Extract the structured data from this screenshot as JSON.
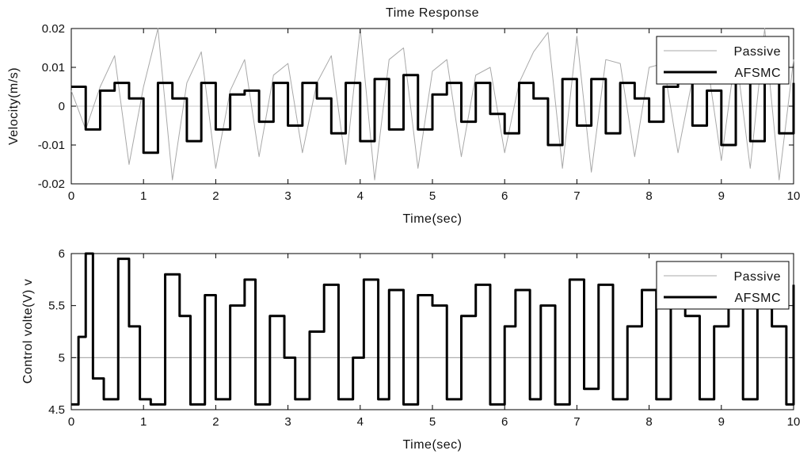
{
  "chart_data": [
    {
      "type": "line",
      "title": "Time Response",
      "xlabel": "Time(sec)",
      "ylabel": "Velocity(m/s)",
      "xlim": [
        0,
        10
      ],
      "ylim": [
        -0.02,
        0.02
      ],
      "xticks": [
        "0",
        "1",
        "2",
        "3",
        "4",
        "5",
        "6",
        "7",
        "8",
        "9",
        "10"
      ],
      "yticks": [
        "-0.02",
        "-0.01",
        "0",
        "0.01",
        "0.02"
      ],
      "legend": {
        "position": "top-right",
        "entries": [
          "Passive",
          "AFSMC"
        ]
      },
      "colors": {
        "Passive": "#a8a8a8",
        "AFSMC": "#000000"
      },
      "series": [
        {
          "name": "Passive",
          "x": [
            0,
            0.2,
            0.4,
            0.6,
            0.8,
            1.0,
            1.2,
            1.4,
            1.6,
            1.8,
            2.0,
            2.2,
            2.4,
            2.6,
            2.8,
            3.0,
            3.2,
            3.4,
            3.6,
            3.8,
            4.0,
            4.2,
            4.4,
            4.6,
            4.8,
            5.0,
            5.2,
            5.4,
            5.6,
            5.8,
            6.0,
            6.2,
            6.4,
            6.6,
            6.8,
            7.0,
            7.2,
            7.4,
            7.6,
            7.8,
            8.0,
            8.2,
            8.4,
            8.6,
            8.8,
            9.0,
            9.2,
            9.4,
            9.6,
            9.8,
            10.0
          ],
          "y": [
            0.004,
            -0.006,
            0.005,
            0.013,
            -0.015,
            0.005,
            0.02,
            -0.019,
            0.006,
            0.014,
            -0.016,
            0.004,
            0.012,
            -0.013,
            0.008,
            0.011,
            -0.012,
            0.006,
            0.013,
            -0.015,
            0.02,
            -0.019,
            0.012,
            0.015,
            -0.016,
            0.009,
            0.012,
            -0.013,
            0.008,
            0.01,
            -0.012,
            0.006,
            0.014,
            0.019,
            -0.016,
            0.018,
            -0.017,
            0.012,
            0.011,
            -0.013,
            0.01,
            0.011,
            -0.012,
            0.007,
            0.012,
            -0.014,
            0.014,
            -0.016,
            0.02,
            -0.019,
            0.012
          ]
        },
        {
          "name": "AFSMC",
          "x": [
            0,
            0.2,
            0.4,
            0.6,
            0.8,
            1.0,
            1.2,
            1.4,
            1.6,
            1.8,
            2.0,
            2.2,
            2.4,
            2.6,
            2.8,
            3.0,
            3.2,
            3.4,
            3.6,
            3.8,
            4.0,
            4.2,
            4.4,
            4.6,
            4.8,
            5.0,
            5.2,
            5.4,
            5.6,
            5.8,
            6.0,
            6.2,
            6.4,
            6.6,
            6.8,
            7.0,
            7.2,
            7.4,
            7.6,
            7.8,
            8.0,
            8.2,
            8.4,
            8.6,
            8.8,
            9.0,
            9.2,
            9.4,
            9.6,
            9.8,
            10.0
          ],
          "y": [
            0.005,
            -0.006,
            0.004,
            0.006,
            0.002,
            -0.012,
            0.006,
            0.002,
            -0.009,
            0.006,
            -0.006,
            0.003,
            0.004,
            -0.004,
            0.006,
            -0.005,
            0.006,
            0.002,
            -0.007,
            0.006,
            -0.009,
            0.007,
            -0.006,
            0.008,
            -0.006,
            0.003,
            0.006,
            -0.004,
            0.006,
            -0.002,
            -0.007,
            0.006,
            0.002,
            -0.01,
            0.007,
            -0.005,
            0.007,
            -0.007,
            0.006,
            0.002,
            -0.004,
            0.005,
            0.006,
            -0.005,
            0.004,
            -0.01,
            0.006,
            -0.009,
            0.006,
            -0.007,
            0.006
          ]
        }
      ]
    },
    {
      "type": "line",
      "title": "",
      "xlabel": "Time(sec)",
      "ylabel": "Control volte(V) v",
      "xlim": [
        0,
        10
      ],
      "ylim": [
        4.5,
        6
      ],
      "xticks": [
        "0",
        "1",
        "2",
        "3",
        "4",
        "5",
        "6",
        "7",
        "8",
        "9",
        "10"
      ],
      "yticks": [
        "4.5",
        "5",
        "5.5",
        "6"
      ],
      "legend": {
        "position": "top-right",
        "entries": [
          "Passive",
          "AFSMC"
        ]
      },
      "colors": {
        "Passive": "#a8a8a8",
        "AFSMC": "#000000"
      },
      "series": [
        {
          "name": "Passive",
          "x": [
            0,
            10
          ],
          "y": [
            5.0,
            5.0
          ]
        },
        {
          "name": "AFSMC",
          "x": [
            0,
            0.1,
            0.2,
            0.3,
            0.45,
            0.65,
            0.8,
            0.95,
            1.1,
            1.3,
            1.5,
            1.65,
            1.85,
            2.0,
            2.2,
            2.4,
            2.55,
            2.75,
            2.95,
            3.1,
            3.3,
            3.5,
            3.7,
            3.9,
            4.05,
            4.25,
            4.4,
            4.6,
            4.8,
            5.0,
            5.2,
            5.4,
            5.6,
            5.8,
            6.0,
            6.15,
            6.35,
            6.5,
            6.7,
            6.9,
            7.1,
            7.3,
            7.5,
            7.7,
            7.9,
            8.1,
            8.3,
            8.5,
            8.7,
            8.9,
            9.1,
            9.3,
            9.5,
            9.7,
            9.9,
            10.0
          ],
          "y": [
            4.55,
            5.2,
            6.0,
            4.8,
            4.6,
            5.95,
            5.3,
            4.6,
            4.55,
            5.8,
            5.4,
            4.55,
            5.6,
            4.6,
            5.5,
            5.75,
            4.55,
            5.4,
            5.0,
            4.6,
            5.25,
            5.7,
            4.6,
            5.0,
            5.75,
            4.6,
            5.65,
            4.55,
            5.6,
            5.5,
            4.6,
            5.4,
            5.7,
            4.55,
            5.3,
            5.65,
            4.6,
            5.5,
            4.55,
            5.75,
            4.7,
            5.7,
            4.6,
            5.3,
            5.65,
            4.6,
            5.55,
            5.4,
            4.6,
            5.3,
            5.5,
            4.6,
            5.6,
            5.3,
            4.55,
            5.7
          ]
        }
      ]
    }
  ]
}
